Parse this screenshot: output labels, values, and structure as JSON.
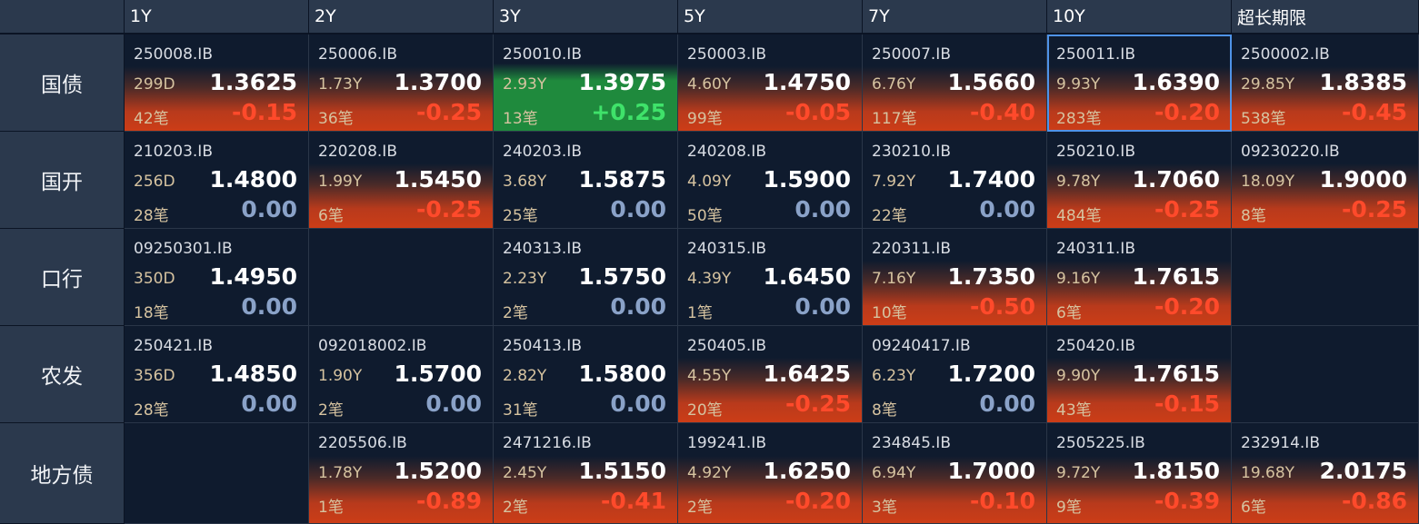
{
  "columns": [
    "1Y",
    "2Y",
    "3Y",
    "5Y",
    "7Y",
    "10Y",
    "超长期限"
  ],
  "rows": [
    {
      "label": "国债",
      "cells": [
        {
          "code": "250008.IB",
          "term": "299D",
          "yield": "1.3625",
          "count": "42笔",
          "change": "-0.15",
          "trend": "down"
        },
        {
          "code": "250006.IB",
          "term": "1.73Y",
          "yield": "1.3700",
          "count": "36笔",
          "change": "-0.25",
          "trend": "down"
        },
        {
          "code": "250010.IB",
          "term": "2.93Y",
          "yield": "1.3975",
          "count": "13笔",
          "change": "+0.25",
          "trend": "up"
        },
        {
          "code": "250003.IB",
          "term": "4.60Y",
          "yield": "1.4750",
          "count": "99笔",
          "change": "-0.05",
          "trend": "down"
        },
        {
          "code": "250007.IB",
          "term": "6.76Y",
          "yield": "1.5660",
          "count": "117笔",
          "change": "-0.40",
          "trend": "down"
        },
        {
          "code": "250011.IB",
          "term": "9.93Y",
          "yield": "1.6390",
          "count": "283笔",
          "change": "-0.20",
          "trend": "down",
          "selected": true
        },
        {
          "code": "2500002.IB",
          "term": "29.85Y",
          "yield": "1.8385",
          "count": "538笔",
          "change": "-0.45",
          "trend": "down"
        }
      ]
    },
    {
      "label": "国开",
      "cells": [
        {
          "code": "210203.IB",
          "term": "256D",
          "yield": "1.4800",
          "count": "28笔",
          "change": "0.00",
          "trend": "flat"
        },
        {
          "code": "220208.IB",
          "term": "1.99Y",
          "yield": "1.5450",
          "count": "6笔",
          "change": "-0.25",
          "trend": "down"
        },
        {
          "code": "240203.IB",
          "term": "3.68Y",
          "yield": "1.5875",
          "count": "25笔",
          "change": "0.00",
          "trend": "flat"
        },
        {
          "code": "240208.IB",
          "term": "4.09Y",
          "yield": "1.5900",
          "count": "50笔",
          "change": "0.00",
          "trend": "flat"
        },
        {
          "code": "230210.IB",
          "term": "7.92Y",
          "yield": "1.7400",
          "count": "22笔",
          "change": "0.00",
          "trend": "flat"
        },
        {
          "code": "250210.IB",
          "term": "9.78Y",
          "yield": "1.7060",
          "count": "484笔",
          "change": "-0.25",
          "trend": "down"
        },
        {
          "code": "09230220.IB",
          "term": "18.09Y",
          "yield": "1.9000",
          "count": "8笔",
          "change": "-0.25",
          "trend": "down"
        }
      ]
    },
    {
      "label": "口行",
      "cells": [
        {
          "code": "09250301.IB",
          "term": "350D",
          "yield": "1.4950",
          "count": "18笔",
          "change": "0.00",
          "trend": "flat"
        },
        null,
        {
          "code": "240313.IB",
          "term": "2.23Y",
          "yield": "1.5750",
          "count": "2笔",
          "change": "0.00",
          "trend": "flat"
        },
        {
          "code": "240315.IB",
          "term": "4.39Y",
          "yield": "1.6450",
          "count": "1笔",
          "change": "0.00",
          "trend": "flat"
        },
        {
          "code": "220311.IB",
          "term": "7.16Y",
          "yield": "1.7350",
          "count": "10笔",
          "change": "-0.50",
          "trend": "down"
        },
        {
          "code": "240311.IB",
          "term": "9.16Y",
          "yield": "1.7615",
          "count": "6笔",
          "change": "-0.20",
          "trend": "down"
        },
        null
      ]
    },
    {
      "label": "农发",
      "cells": [
        {
          "code": "250421.IB",
          "term": "356D",
          "yield": "1.4850",
          "count": "28笔",
          "change": "0.00",
          "trend": "flat"
        },
        {
          "code": "092018002.IB",
          "term": "1.90Y",
          "yield": "1.5700",
          "count": "2笔",
          "change": "0.00",
          "trend": "flat"
        },
        {
          "code": "250413.IB",
          "term": "2.82Y",
          "yield": "1.5800",
          "count": "31笔",
          "change": "0.00",
          "trend": "flat"
        },
        {
          "code": "250405.IB",
          "term": "4.55Y",
          "yield": "1.6425",
          "count": "20笔",
          "change": "-0.25",
          "trend": "down"
        },
        {
          "code": "09240417.IB",
          "term": "6.23Y",
          "yield": "1.7200",
          "count": "8笔",
          "change": "0.00",
          "trend": "flat"
        },
        {
          "code": "250420.IB",
          "term": "9.90Y",
          "yield": "1.7615",
          "count": "43笔",
          "change": "-0.15",
          "trend": "down"
        },
        null
      ]
    },
    {
      "label": "地方债",
      "cells": [
        null,
        {
          "code": "2205506.IB",
          "term": "1.78Y",
          "yield": "1.5200",
          "count": "1笔",
          "change": "-0.89",
          "trend": "down"
        },
        {
          "code": "2471216.IB",
          "term": "2.45Y",
          "yield": "1.5150",
          "count": "2笔",
          "change": "-0.41",
          "trend": "down"
        },
        {
          "code": "199241.IB",
          "term": "4.92Y",
          "yield": "1.6250",
          "count": "2笔",
          "change": "-0.20",
          "trend": "down"
        },
        {
          "code": "234845.IB",
          "term": "6.94Y",
          "yield": "1.7000",
          "count": "3笔",
          "change": "-0.10",
          "trend": "down"
        },
        {
          "code": "2505225.IB",
          "term": "9.72Y",
          "yield": "1.8150",
          "count": "9笔",
          "change": "-0.39",
          "trend": "down"
        },
        {
          "code": "232914.IB",
          "term": "19.68Y",
          "yield": "2.0175",
          "count": "6笔",
          "change": "-0.86",
          "trend": "down"
        }
      ]
    }
  ],
  "colors": {
    "negative": "#ff3d22",
    "positive": "#3fe26a",
    "flat": "#8aa2c8",
    "selected_border": "#4f93e8"
  }
}
